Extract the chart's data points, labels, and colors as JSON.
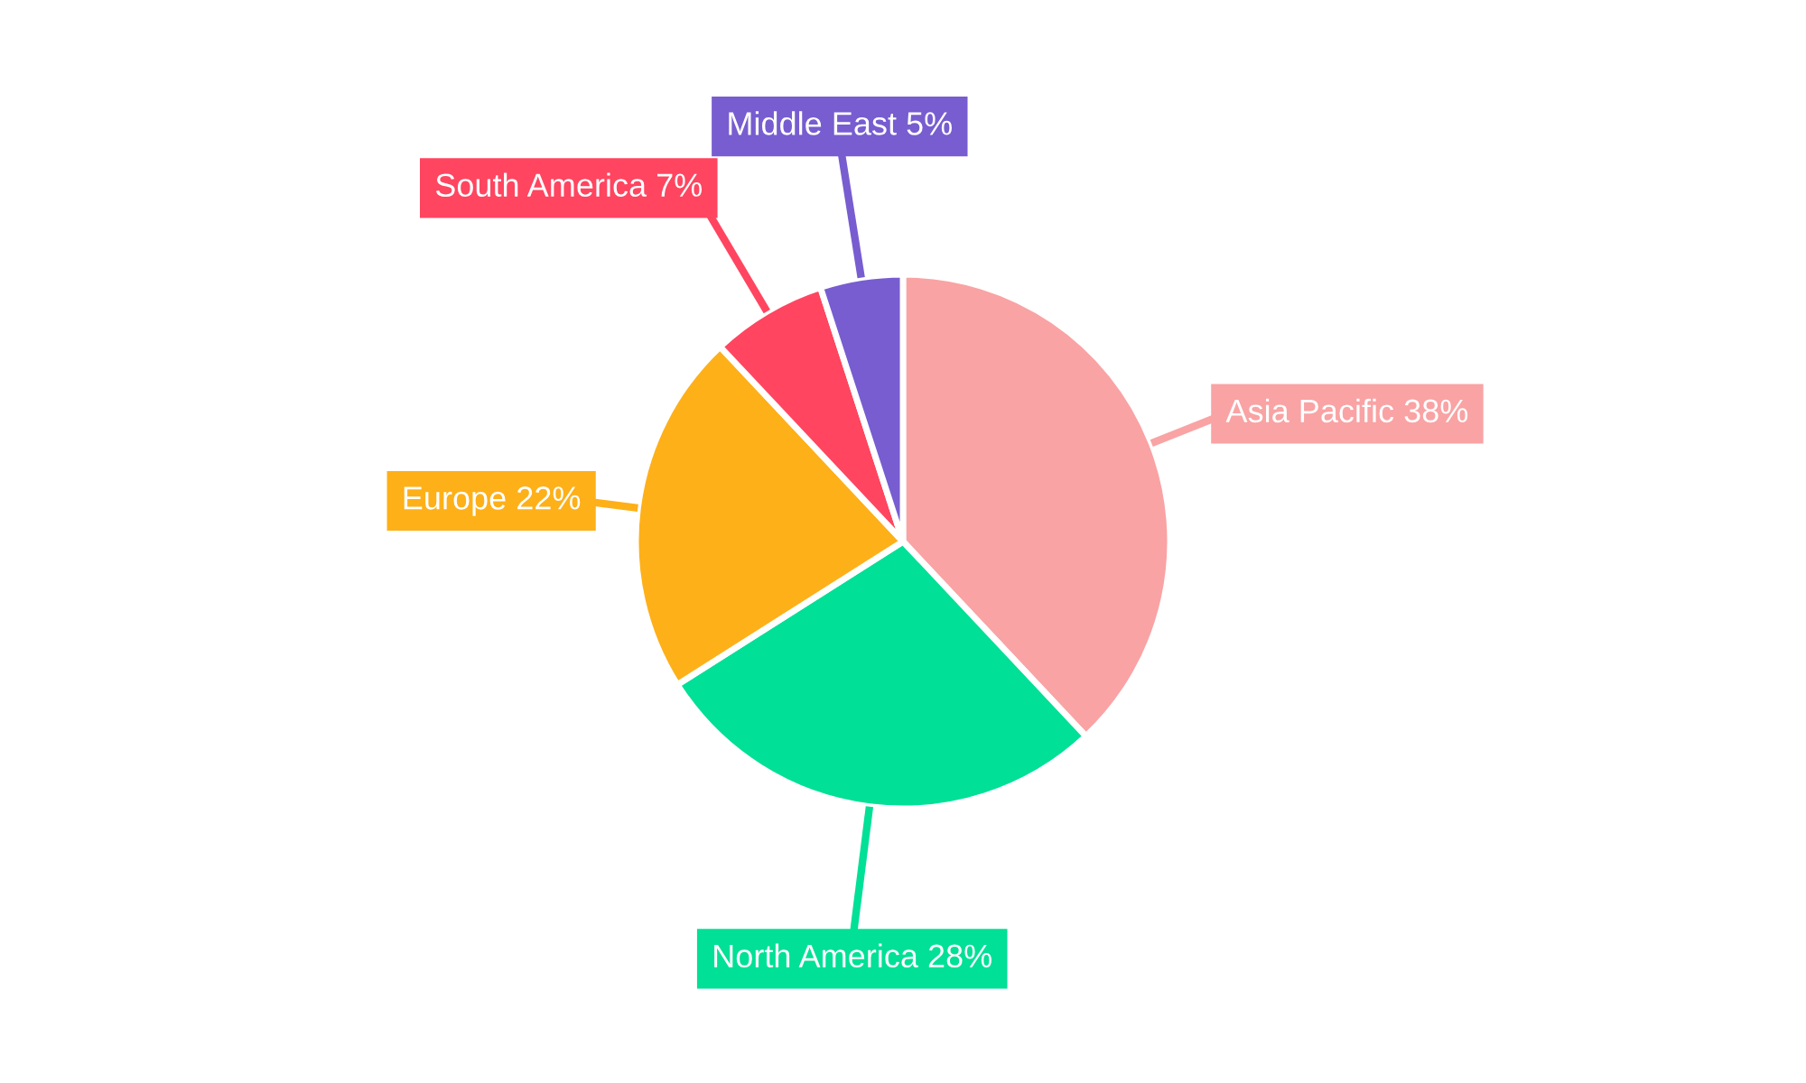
{
  "chart_data": {
    "type": "pie",
    "categories": [
      "Asia Pacific",
      "North America",
      "Europe",
      "South America",
      "Middle East"
    ],
    "values": [
      38,
      28,
      22,
      7,
      5
    ],
    "colors": [
      "#f9a3a4",
      "#00e096",
      "#feb019",
      "#ff4560",
      "#775dd0"
    ],
    "value_labels": [
      "38%",
      "28%",
      "22%",
      "7%",
      "5%"
    ],
    "legend": false
  }
}
